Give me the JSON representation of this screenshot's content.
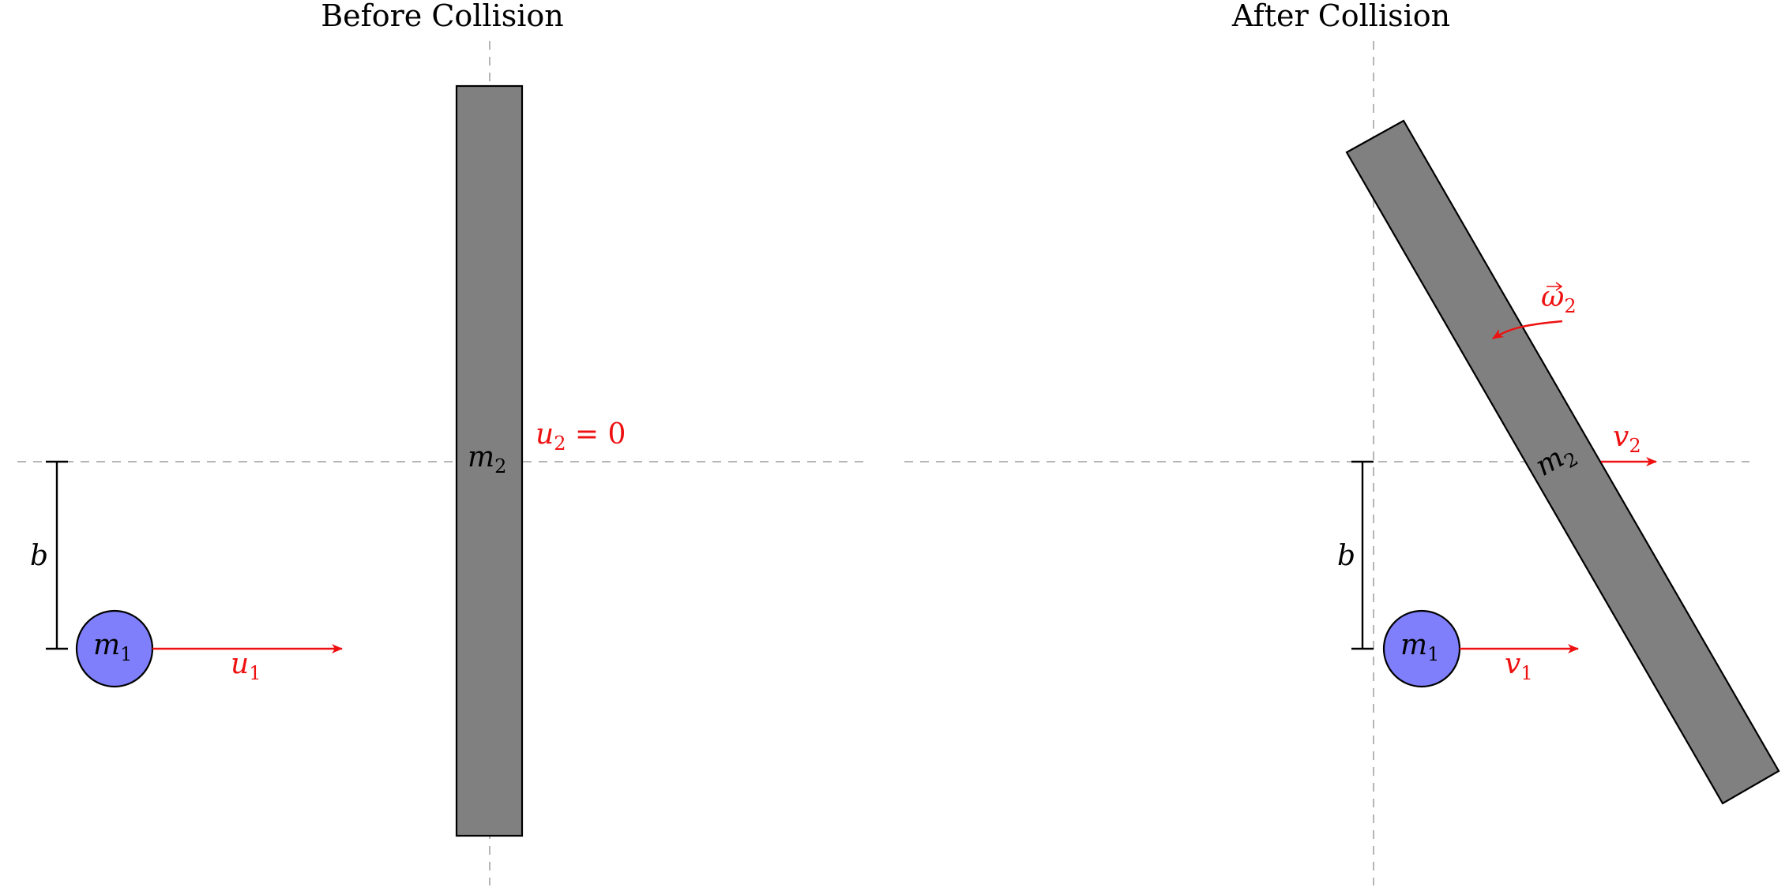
{
  "panels": {
    "before": {
      "title": "Before Collision",
      "rod_label": {
        "sym": "m",
        "sub": "2"
      },
      "ball_label": {
        "sym": "m",
        "sub": "1"
      },
      "ball_velocity": {
        "sym": "u",
        "sub": "1"
      },
      "rod_velocity": {
        "sym": "u",
        "sub": "2",
        "rest": " = 0"
      },
      "impact_parameter": "b"
    },
    "after": {
      "title": "After Collision",
      "rod_label": {
        "sym": "m",
        "sub": "2"
      },
      "ball_label": {
        "sym": "m",
        "sub": "1"
      },
      "ball_velocity": {
        "sym": "v",
        "sub": "1"
      },
      "rod_velocity": {
        "sym": "v",
        "sub": "2"
      },
      "angular_velocity": {
        "sym": "ω",
        "sub": "2"
      },
      "impact_parameter": "b"
    }
  },
  "colors": {
    "rod": "#808080",
    "ball": "#7f7ffc",
    "vector": "#ee1111",
    "guide": "#b5b5b5"
  }
}
